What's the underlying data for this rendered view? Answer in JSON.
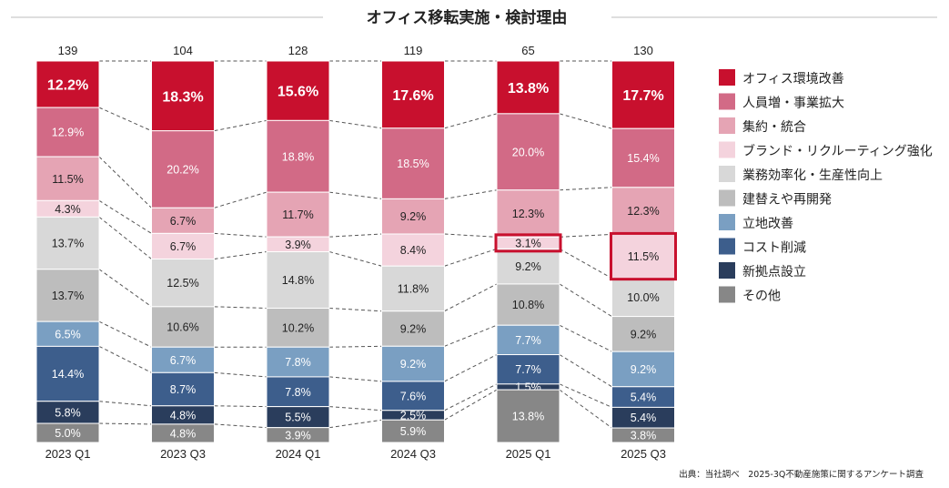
{
  "chart_data": {
    "type": "stacked-bar-100",
    "title": "オフィス移転実施・検討理由",
    "categories": [
      "2023 Q1",
      "2023 Q3",
      "2024 Q1",
      "2024 Q3",
      "2025 Q1",
      "2025 Q3"
    ],
    "counts": [
      "139",
      "104",
      "128",
      "119",
      "65",
      "130"
    ],
    "series": [
      {
        "name": "オフィス環境改善",
        "color": "#c8102e",
        "values": [
          12.2,
          18.3,
          15.6,
          17.6,
          13.8,
          17.7
        ]
      },
      {
        "name": "人員増・事業拡大",
        "color": "#d26a86",
        "values": [
          12.9,
          20.2,
          18.8,
          18.5,
          20.0,
          15.4
        ]
      },
      {
        "name": "集約・統合",
        "color": "#e5a4b4",
        "values": [
          11.5,
          6.7,
          11.7,
          9.2,
          12.3,
          12.3
        ]
      },
      {
        "name": "ブランド・リクルーティング強化",
        "color": "#f4d3dd",
        "values": [
          4.3,
          6.7,
          3.9,
          8.4,
          3.1,
          11.5
        ]
      },
      {
        "name": "業務効率化・生産性向上",
        "color": "#d8d8d8",
        "values": [
          13.7,
          12.5,
          14.8,
          11.8,
          9.2,
          10.0
        ]
      },
      {
        "name": "建替えや再開発",
        "color": "#bdbdbd",
        "values": [
          13.7,
          10.6,
          10.2,
          9.2,
          10.8,
          9.2
        ]
      },
      {
        "name": "立地改善",
        "color": "#7a9fc2",
        "values": [
          6.5,
          6.7,
          7.8,
          9.2,
          7.7,
          9.2
        ]
      },
      {
        "name": "コスト削減",
        "color": "#3d5e8c",
        "values": [
          14.4,
          8.7,
          7.8,
          7.6,
          7.7,
          5.4
        ]
      },
      {
        "name": "新拠点設立",
        "color": "#2a3d5c",
        "values": [
          5.8,
          4.8,
          5.5,
          2.5,
          1.5,
          5.4
        ]
      },
      {
        "name": "その他",
        "color": "#878787",
        "values": [
          5.0,
          4.8,
          3.9,
          5.9,
          13.8,
          3.8
        ]
      }
    ],
    "value_suffix": "%",
    "highlights": [
      {
        "category": "2025 Q1",
        "series": "ブランド・リクルーティング強化"
      },
      {
        "category": "2025 Q3",
        "series": "ブランド・リクルーティング強化"
      }
    ],
    "legend_position": "right"
  },
  "source": "出典：当社調べ　2025-3Q不動産施策に関するアンケート調査"
}
